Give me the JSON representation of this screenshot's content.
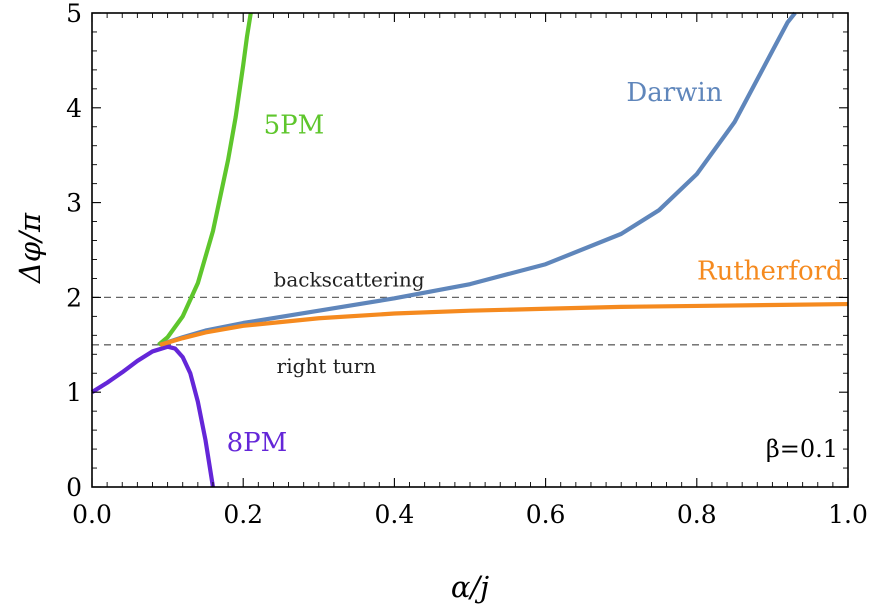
{
  "chart_data": {
    "type": "line",
    "xlabel": "α/j",
    "ylabel": "Δφ/π",
    "xlim": [
      0.0,
      1.0
    ],
    "ylim": [
      0,
      5
    ],
    "x_ticks": [
      "0.0",
      "0.2",
      "0.4",
      "0.6",
      "0.8",
      "1.0"
    ],
    "y_ticks": [
      "0",
      "1",
      "2",
      "3",
      "4",
      "5"
    ],
    "grid": false,
    "parameter_label": "β=0.1",
    "reference_lines": [
      {
        "y": 2,
        "label": "backscattering"
      },
      {
        "y": 1.5,
        "label": "right turn"
      }
    ],
    "series": [
      {
        "name": "5PM",
        "color": "#5ec62c",
        "x": [
          0.088,
          0.1,
          0.12,
          0.14,
          0.16,
          0.18,
          0.19,
          0.2,
          0.205,
          0.21
        ],
        "y": [
          1.5,
          1.58,
          1.8,
          2.15,
          2.7,
          3.45,
          3.9,
          4.45,
          4.75,
          5.0
        ]
      },
      {
        "name": "8PM",
        "color": "#6426d8",
        "x": [
          0.0,
          0.02,
          0.04,
          0.06,
          0.08,
          0.1,
          0.11,
          0.12,
          0.13,
          0.14,
          0.15,
          0.16
        ],
        "y": [
          1.0,
          1.1,
          1.21,
          1.33,
          1.43,
          1.48,
          1.46,
          1.37,
          1.2,
          0.9,
          0.5,
          0.0
        ]
      },
      {
        "name": "Darwin",
        "color": "#5f86bb",
        "x": [
          0.09,
          0.12,
          0.15,
          0.2,
          0.3,
          0.4,
          0.5,
          0.6,
          0.7,
          0.75,
          0.8,
          0.85,
          0.9,
          0.92,
          0.93
        ],
        "y": [
          1.5,
          1.58,
          1.65,
          1.73,
          1.86,
          1.99,
          2.14,
          2.35,
          2.67,
          2.92,
          3.3,
          3.85,
          4.6,
          4.9,
          5.0
        ]
      },
      {
        "name": "Rutherford",
        "color": "#f58a1f",
        "x": [
          0.09,
          0.12,
          0.15,
          0.2,
          0.3,
          0.4,
          0.5,
          0.6,
          0.7,
          0.8,
          0.9,
          1.0
        ],
        "y": [
          1.5,
          1.57,
          1.63,
          1.7,
          1.78,
          1.83,
          1.86,
          1.88,
          1.9,
          1.91,
          1.92,
          1.93
        ]
      }
    ]
  }
}
